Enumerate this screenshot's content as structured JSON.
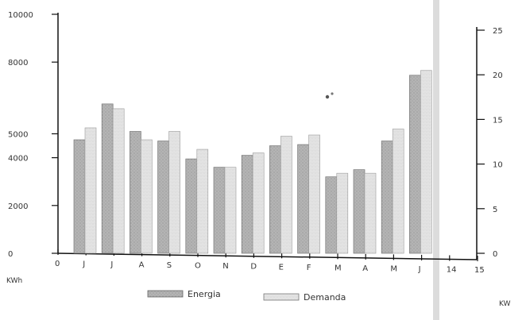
{
  "chart_data": {
    "type": "bar",
    "categories": [
      "J",
      "J",
      "A",
      "S",
      "O",
      "N",
      "D",
      "E",
      "F",
      "M",
      "A",
      "M",
      "J"
    ],
    "series": [
      {
        "name": "Energia",
        "values": [
          4750,
          6250,
          5100,
          4700,
          3950,
          3600,
          4100,
          4500,
          4550,
          3200,
          3500,
          4700,
          7450
        ]
      },
      {
        "name": "Demanda",
        "values": [
          5250,
          6050,
          4750,
          5100,
          4350,
          3600,
          4200,
          4900,
          4950,
          3350,
          3350,
          5200,
          7650
        ]
      }
    ],
    "x_axis_ticks": [
      "0",
      "J",
      "J",
      "A",
      "S",
      "O",
      "N",
      "D",
      "E",
      "F",
      "M",
      "A",
      "M",
      "J",
      "14",
      "15"
    ],
    "ylim": [
      0,
      10000
    ],
    "y_ticks": [
      0,
      2000,
      4000,
      5000,
      8000,
      10000
    ],
    "y2_ticks": [
      0,
      5,
      10,
      15,
      20,
      25
    ],
    "y2lim": [
      0,
      25
    ],
    "left_axis_label": "KWh",
    "right_axis_label": "KW",
    "grid": false,
    "legend_position": "bottom-center",
    "colors": {
      "energia": "#a9a9a9",
      "demanda": "#d8d8d8",
      "axis": "#111111"
    }
  }
}
